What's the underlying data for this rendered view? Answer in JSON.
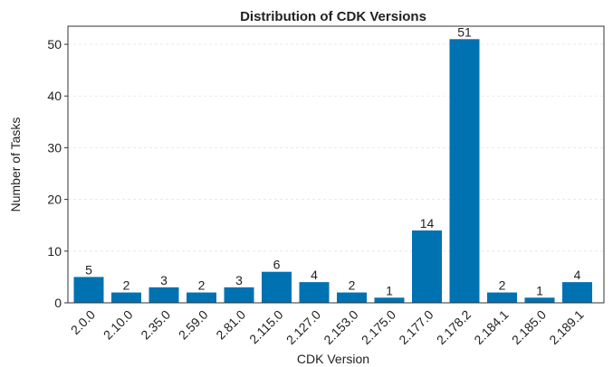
{
  "chart_data": {
    "type": "bar",
    "title": "Distribution of CDK Versions",
    "x_label": "CDK Version",
    "y_label": "Number of Tasks",
    "categories": [
      "2.0.0",
      "2.10.0",
      "2.35.0",
      "2.59.0",
      "2.81.0",
      "2.115.0",
      "2.127.0",
      "2.153.0",
      "2.175.0",
      "2.177.0",
      "2.178.2",
      "2.184.1",
      "2.185.0",
      "2.189.1"
    ],
    "values": [
      5,
      2,
      3,
      2,
      3,
      6,
      4,
      2,
      1,
      14,
      51,
      2,
      1,
      4
    ],
    "color": "#0072b2",
    "ylim": [
      0,
      53.5
    ],
    "yticks": [
      0,
      10,
      20,
      30,
      40,
      50
    ],
    "grid": true
  }
}
